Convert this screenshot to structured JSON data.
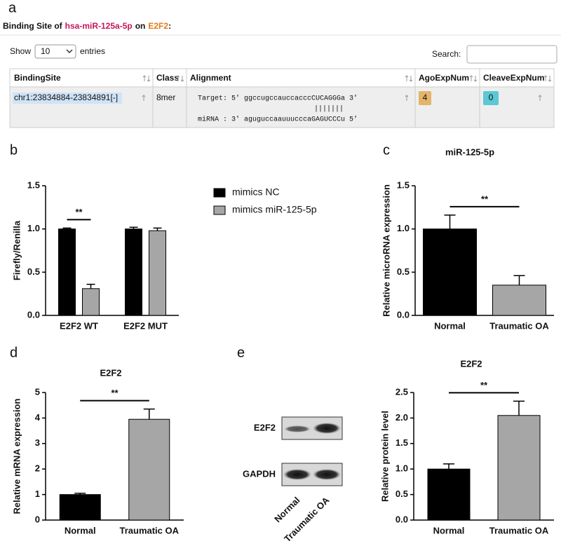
{
  "table_panel": {
    "panel": "a",
    "title": {
      "prefix": "Binding Site of",
      "mirna": "hsa-miR-125a-5p",
      "joiner": "on",
      "gene": "E2F2",
      "suffix": ":"
    },
    "show": "Show",
    "page_size": "10",
    "entries": "entries",
    "search": "Search:",
    "headers": [
      "BindingSite",
      "Class",
      "Alignment",
      "AgoExpNum",
      "CleaveExpNum"
    ],
    "rows": [
      {
        "binding_site": "chr1:23834884-23834891[-]",
        "class": "8mer",
        "target": "Target: 5' ggccugccauccacccCUCAGGGa 3'",
        "pairing": "|||||||",
        "mirna": "miRNA : 3' aguguccaauuucccaGAGUCCCu 5'",
        "ago": 4,
        "cleave": 0
      }
    ]
  },
  "blot_panel": {
    "panel": "e",
    "bands": [
      "E2F2",
      "GAPDH"
    ],
    "lanes": [
      "Normal",
      "Traumatic OA"
    ]
  },
  "chart_data": [
    {
      "type": "bar",
      "panel": "b",
      "ylabel": "Firefly/Renilla",
      "categories": [
        "E2F2 WT",
        "E2F2 MUT"
      ],
      "series": [
        {
          "name": "mimics NC",
          "color": "#000000",
          "values": [
            1.0,
            1.0
          ],
          "errors": [
            0.01,
            0.02
          ]
        },
        {
          "name": "mimics miR-125-5p",
          "color": "#a6a6a6",
          "values": [
            0.31,
            0.98
          ],
          "errors": [
            0.05,
            0.03
          ]
        }
      ],
      "ylim": [
        0,
        1.5
      ],
      "yticks": [
        {
          "value": 0,
          "label": "0.0"
        },
        0.5,
        {
          "value": 1,
          "label": "1.0"
        },
        1.5
      ],
      "annotation": "**"
    },
    {
      "type": "bar",
      "panel": "c",
      "title": "miR-125-5p",
      "ylabel": "Relative microRNA expression",
      "categories": [
        "Normal",
        "Traumatic OA"
      ],
      "values": [
        1.0,
        0.35
      ],
      "errors": [
        0.16,
        0.11
      ],
      "colors": [
        "#000000",
        "#a6a6a6"
      ],
      "ylim": [
        0,
        1.5
      ],
      "yticks": [
        {
          "value": 0,
          "label": "0.0"
        },
        0.5,
        {
          "value": 1,
          "label": "1.0"
        },
        1.5
      ],
      "annotation": "**"
    },
    {
      "type": "bar",
      "panel": "d",
      "title": "E2F2",
      "ylabel": "Relative mRNA expression",
      "categories": [
        "Normal",
        "Traumatic OA"
      ],
      "values": [
        1.0,
        3.95
      ],
      "errors": [
        0.05,
        0.4
      ],
      "colors": [
        "#000000",
        "#a6a6a6"
      ],
      "ylim": [
        0,
        5
      ],
      "yticks": [
        0,
        1,
        2,
        3,
        4,
        5
      ],
      "annotation": "**"
    },
    {
      "type": "bar",
      "title": "E2F2",
      "ylabel": "Relative protein level",
      "categories": [
        "Normal",
        "Traumatic OA"
      ],
      "values": [
        1.0,
        2.05
      ],
      "errors": [
        0.1,
        0.28
      ],
      "colors": [
        "#000000",
        "#a6a6a6"
      ],
      "ylim": [
        0,
        2.5
      ],
      "yticks": [
        {
          "value": 0,
          "label": "0.0"
        },
        0.5,
        {
          "value": 1,
          "label": "1.0"
        },
        1.5,
        {
          "value": 2,
          "label": "2.0"
        },
        2.5
      ],
      "annotation": "**"
    }
  ]
}
